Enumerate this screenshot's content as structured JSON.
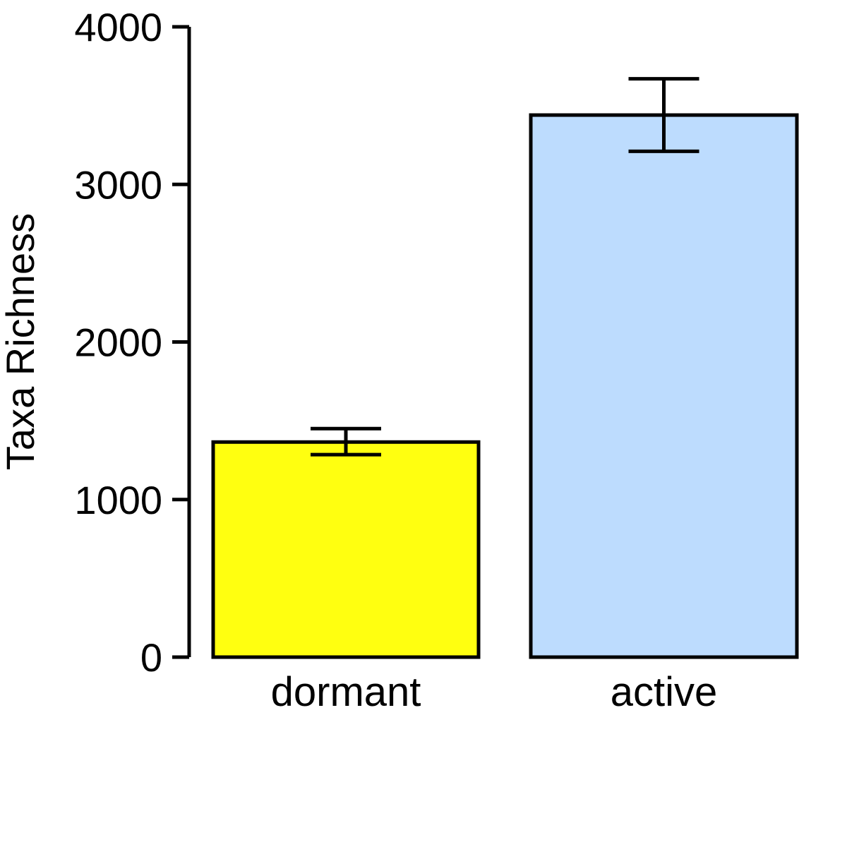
{
  "chart_data": {
    "type": "bar",
    "categories": [
      "dormant",
      "active"
    ],
    "values": [
      1365,
      3440
    ],
    "error_low": [
      1285,
      3210
    ],
    "error_high": [
      1450,
      3670
    ],
    "colors": [
      "#ffff10",
      "#bddcfe"
    ],
    "xlabel": "",
    "ylabel": "Taxa Richness",
    "ylim": [
      0,
      4000
    ],
    "yticks": [
      0,
      1000,
      2000,
      3000,
      4000
    ],
    "yticklabels": [
      "0",
      "1000",
      "2000",
      "3000",
      "4000"
    ],
    "grid": false
  }
}
